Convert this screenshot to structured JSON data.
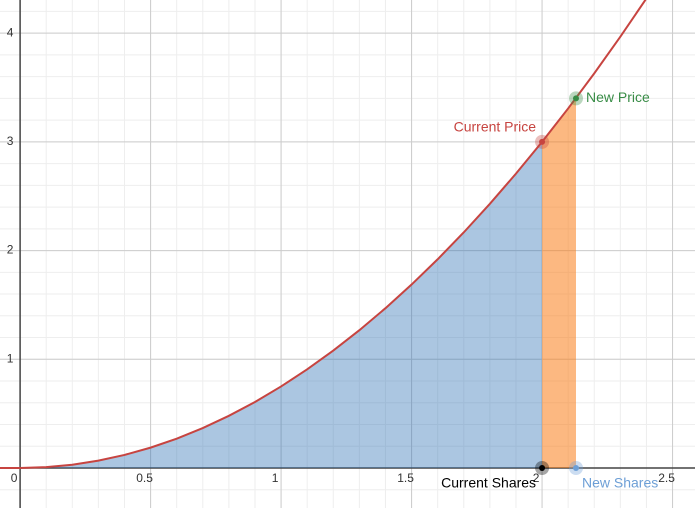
{
  "chart_data": {
    "type": "line",
    "x": [
      0,
      0.1,
      0.2,
      0.3,
      0.4,
      0.5,
      0.6,
      0.7,
      0.8,
      0.9,
      1,
      1.1,
      1.2,
      1.3,
      1.4,
      1.5,
      1.6,
      1.7,
      1.8,
      1.9,
      2,
      2.1,
      2.2,
      2.3,
      2.4
    ],
    "series": [
      {
        "color": "#c74440",
        "values": [
          0,
          0.0075,
          0.03,
          0.0675,
          0.12,
          0.1875,
          0.27,
          0.3675,
          0.48,
          0.6075,
          0.75,
          0.9075,
          1.08,
          1.2675,
          1.47,
          1.6875,
          1.92,
          2.1675,
          2.43,
          2.7075,
          3,
          3.3075,
          3.63,
          3.9675,
          4.32
        ]
      }
    ],
    "area_color": "#2d70b3",
    "area_end_index": 20,
    "delta_color": "#fa7e19",
    "points": [
      {
        "label": "Current Price",
        "x": 2,
        "y": 3,
        "color": "#c74440"
      },
      {
        "label": "New Price",
        "x": 2.13,
        "y": 3.4,
        "color": "#388c46"
      },
      {
        "label": "Current Shares",
        "x": 2,
        "y": 0,
        "color": "#000000"
      },
      {
        "label": "New Shares",
        "x": 2.13,
        "y": 0,
        "color": "#6d9fd6"
      }
    ],
    "xlim": [
      -0.077,
      2.586
    ],
    "ylim": [
      -0.368,
      4.305
    ],
    "xticks": [
      0,
      0.5,
      1,
      1.5,
      2,
      2.5
    ],
    "yticks": [
      1,
      2,
      3,
      4
    ],
    "grid": true,
    "minor_divisions": 5
  }
}
